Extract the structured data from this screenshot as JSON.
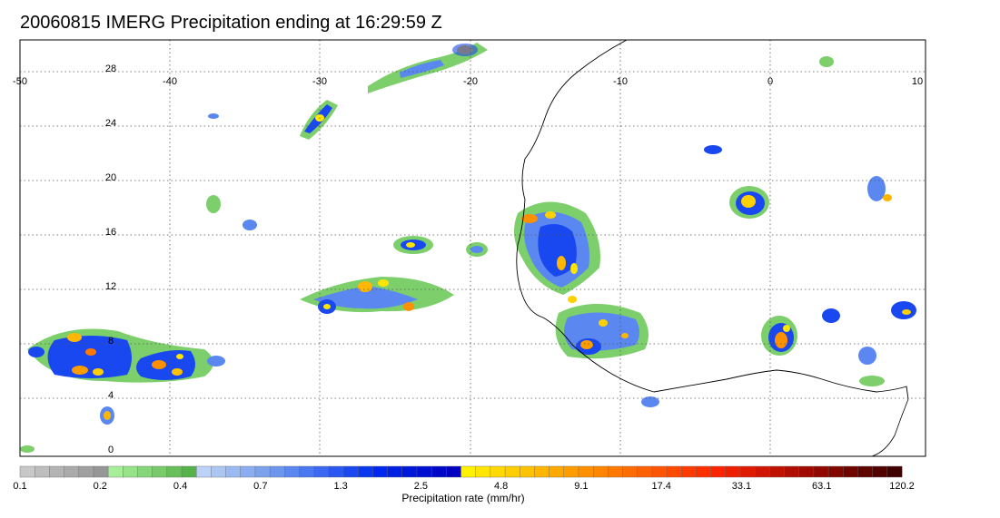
{
  "title": "20060815 IMERG Precipitation ending at 16:29:59 Z",
  "map": {
    "lon_ticks": [
      "-50",
      "-40",
      "-30",
      "-20",
      "-10",
      "0",
      "10"
    ],
    "lat_ticks": [
      "28",
      "24",
      "20",
      "16",
      "12",
      "8",
      "4",
      "0"
    ],
    "lon_range": [
      -50,
      10
    ],
    "lat_range": [
      -0.5,
      30
    ],
    "grid": true
  },
  "colorbar": {
    "label": "Precipitation rate (mm/hr)",
    "tick_labels": [
      "0.1",
      "0.2",
      "0.4",
      "0.7",
      "1.3",
      "2.5",
      "4.8",
      "9.1",
      "17.4",
      "33.1",
      "63.1",
      "120.2"
    ],
    "colors": [
      "#c8c8c8",
      "#bebebe",
      "#b4b4b4",
      "#aaaaaa",
      "#a0a0a0",
      "#969696",
      "#a8ee9a",
      "#98e28a",
      "#88d67a",
      "#78ca6a",
      "#68be5a",
      "#58b24a",
      "#bcd2f6",
      "#acc6f4",
      "#9cbaf2",
      "#8caef0",
      "#7ca2ee",
      "#6c96ec",
      "#5a88f0",
      "#4a78f0",
      "#3a68f0",
      "#2a58f0",
      "#1a48f0",
      "#0a38f0",
      "#0028f0",
      "#0020e6",
      "#0018dc",
      "#0010d2",
      "#0008c8",
      "#0000be",
      "#fff200",
      "#ffe600",
      "#ffda00",
      "#ffce00",
      "#ffc200",
      "#ffb600",
      "#ffa800",
      "#ff9c00",
      "#ff9000",
      "#ff8400",
      "#ff7800",
      "#ff6c00",
      "#ff6000",
      "#ff5400",
      "#ff4800",
      "#ff3c00",
      "#ff3000",
      "#ff2400",
      "#f01e00",
      "#e01a00",
      "#d01600",
      "#c01200",
      "#b00e00",
      "#a00a00",
      "#900800",
      "#800600",
      "#700500",
      "#600400",
      "#500300",
      "#400200"
    ]
  }
}
